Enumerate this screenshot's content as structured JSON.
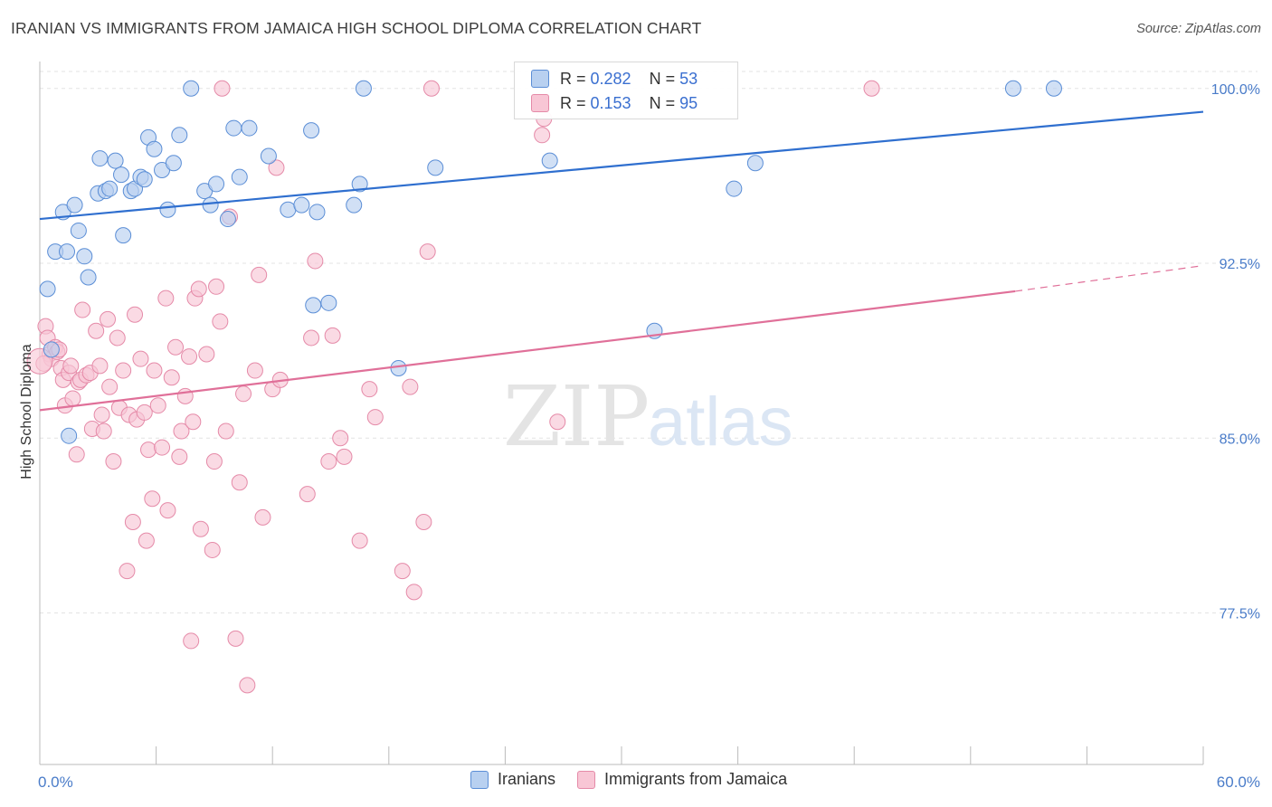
{
  "header": {
    "title": "IRANIAN VS IMMIGRANTS FROM JAMAICA HIGH SCHOOL DIPLOMA CORRELATION CHART",
    "source": "Source: ZipAtlas.com"
  },
  "watermark": {
    "zip": "ZIP",
    "atlas": "atlas"
  },
  "colors": {
    "blue_fill": "#b8d0f0",
    "blue_stroke": "#5b8ed6",
    "blue_line": "#2f6fcf",
    "pink_fill": "#f8c6d5",
    "pink_stroke": "#e58aa8",
    "pink_line": "#e07099",
    "tick_color": "#4a7cc9",
    "grid": "#e3e3e3"
  },
  "legend": {
    "rows": [
      {
        "r_label": "R = ",
        "r_value": "0.282",
        "n_label": "N = ",
        "n_value": "53"
      },
      {
        "r_label": "R = ",
        "r_value": "0.153",
        "n_label": "N = ",
        "n_value": "95"
      }
    ]
  },
  "chart_data": {
    "type": "scatter",
    "title": "IRANIAN VS IMMIGRANTS FROM JAMAICA HIGH SCHOOL DIPLOMA CORRELATION CHART",
    "xlabel": "",
    "ylabel": "High School Diploma",
    "xlim": [
      0,
      60
    ],
    "ylim": [
      71.0,
      101.0
    ],
    "x_tick_labels": [
      "0.0%",
      "60.0%"
    ],
    "x_tick_positions": [
      0,
      6,
      12,
      18,
      24,
      30,
      36,
      42,
      48,
      54,
      60
    ],
    "y_ticks": [
      77.5,
      85.0,
      92.5,
      100.0
    ],
    "y_tick_labels": [
      "77.5%",
      "85.0%",
      "92.5%",
      "100.0%"
    ],
    "grid": true,
    "legend_position": "top-center",
    "series": [
      {
        "name": "Iranians",
        "color": "blue",
        "r": 0.282,
        "n": 53,
        "trend": {
          "x": [
            0,
            60
          ],
          "y": [
            94.4,
            99.0
          ]
        },
        "points": [
          [
            0.4,
            91.4
          ],
          [
            0.8,
            93.0
          ],
          [
            1.2,
            94.7
          ],
          [
            1.8,
            95.0
          ],
          [
            2.0,
            93.9
          ],
          [
            2.3,
            92.8
          ],
          [
            2.5,
            91.9
          ],
          [
            1.4,
            93.0
          ],
          [
            3.0,
            95.5
          ],
          [
            3.1,
            97.0
          ],
          [
            3.4,
            95.6
          ],
          [
            3.6,
            95.7
          ],
          [
            3.9,
            96.9
          ],
          [
            4.2,
            96.3
          ],
          [
            4.3,
            93.7
          ],
          [
            4.7,
            95.6
          ],
          [
            4.9,
            95.7
          ],
          [
            5.2,
            96.2
          ],
          [
            5.4,
            96.1
          ],
          [
            5.6,
            97.9
          ],
          [
            5.9,
            97.4
          ],
          [
            6.3,
            96.5
          ],
          [
            6.6,
            94.8
          ],
          [
            6.9,
            96.8
          ],
          [
            7.2,
            98.0
          ],
          [
            7.8,
            100.0
          ],
          [
            8.5,
            95.6
          ],
          [
            8.8,
            95.0
          ],
          [
            9.1,
            95.9
          ],
          [
            9.7,
            94.4
          ],
          [
            10.0,
            98.3
          ],
          [
            10.3,
            96.2
          ],
          [
            10.8,
            98.3
          ],
          [
            11.8,
            97.1
          ],
          [
            12.8,
            94.8
          ],
          [
            13.5,
            95.0
          ],
          [
            14.0,
            98.2
          ],
          [
            14.3,
            94.7
          ],
          [
            14.1,
            90.7
          ],
          [
            14.9,
            90.8
          ],
          [
            16.2,
            95.0
          ],
          [
            16.5,
            95.9
          ],
          [
            16.7,
            100.0
          ],
          [
            18.5,
            88.0
          ],
          [
            20.4,
            96.6
          ],
          [
            26.3,
            96.9
          ],
          [
            31.7,
            89.6
          ],
          [
            35.8,
            95.7
          ],
          [
            36.9,
            96.8
          ],
          [
            50.2,
            100.0
          ],
          [
            52.3,
            100.0
          ],
          [
            1.5,
            85.1
          ],
          [
            0.6,
            88.8
          ]
        ]
      },
      {
        "name": "Immigrants from Jamaica",
        "color": "pink",
        "r": 0.153,
        "n": 95,
        "trend": {
          "x": [
            0,
            50.3
          ],
          "y": [
            86.2,
            91.3
          ]
        },
        "trend_dashed": {
          "x": [
            50.3,
            60
          ],
          "y": [
            91.3,
            92.4
          ]
        },
        "points": [
          [
            0.3,
            89.8
          ],
          [
            0.4,
            89.3
          ],
          [
            0.5,
            88.6
          ],
          [
            0.6,
            88.4
          ],
          [
            0.8,
            88.9
          ],
          [
            0.9,
            88.7
          ],
          [
            1.0,
            88.8
          ],
          [
            1.1,
            88.0
          ],
          [
            1.2,
            87.5
          ],
          [
            1.3,
            86.4
          ],
          [
            1.5,
            87.8
          ],
          [
            1.7,
            86.7
          ],
          [
            1.9,
            84.3
          ],
          [
            2.0,
            87.4
          ],
          [
            2.1,
            87.5
          ],
          [
            2.2,
            90.5
          ],
          [
            2.4,
            87.7
          ],
          [
            2.6,
            87.8
          ],
          [
            2.7,
            85.4
          ],
          [
            2.9,
            89.6
          ],
          [
            3.1,
            88.1
          ],
          [
            3.2,
            86.0
          ],
          [
            3.3,
            85.3
          ],
          [
            3.5,
            90.1
          ],
          [
            3.6,
            87.2
          ],
          [
            3.8,
            84.0
          ],
          [
            4.0,
            89.3
          ],
          [
            4.1,
            86.3
          ],
          [
            4.3,
            87.9
          ],
          [
            4.5,
            79.3
          ],
          [
            4.6,
            86.0
          ],
          [
            4.8,
            81.4
          ],
          [
            4.9,
            90.3
          ],
          [
            5.0,
            85.8
          ],
          [
            5.2,
            88.4
          ],
          [
            5.4,
            86.1
          ],
          [
            5.5,
            80.6
          ],
          [
            5.6,
            84.5
          ],
          [
            5.8,
            82.4
          ],
          [
            5.9,
            87.9
          ],
          [
            6.1,
            86.4
          ],
          [
            6.3,
            84.6
          ],
          [
            6.5,
            91.0
          ],
          [
            6.6,
            81.9
          ],
          [
            6.8,
            87.6
          ],
          [
            7.0,
            88.9
          ],
          [
            7.2,
            84.2
          ],
          [
            7.3,
            85.3
          ],
          [
            7.5,
            86.8
          ],
          [
            7.7,
            88.5
          ],
          [
            7.8,
            76.3
          ],
          [
            7.9,
            85.7
          ],
          [
            8.0,
            91.0
          ],
          [
            8.2,
            91.4
          ],
          [
            8.3,
            81.1
          ],
          [
            8.6,
            88.6
          ],
          [
            8.9,
            80.2
          ],
          [
            9.0,
            84.0
          ],
          [
            9.1,
            91.5
          ],
          [
            9.3,
            90.0
          ],
          [
            9.6,
            85.3
          ],
          [
            9.8,
            94.5
          ],
          [
            10.1,
            76.4
          ],
          [
            10.3,
            83.1
          ],
          [
            10.5,
            86.9
          ],
          [
            10.7,
            74.4
          ],
          [
            11.1,
            87.9
          ],
          [
            11.3,
            92.0
          ],
          [
            11.5,
            81.6
          ],
          [
            12.0,
            87.1
          ],
          [
            12.2,
            96.6
          ],
          [
            12.4,
            87.5
          ],
          [
            13.8,
            82.6
          ],
          [
            14.0,
            89.3
          ],
          [
            14.2,
            92.6
          ],
          [
            14.9,
            84.0
          ],
          [
            15.1,
            89.4
          ],
          [
            15.5,
            85.0
          ],
          [
            15.7,
            84.2
          ],
          [
            16.5,
            80.6
          ],
          [
            17.0,
            87.1
          ],
          [
            17.3,
            85.9
          ],
          [
            18.7,
            79.3
          ],
          [
            19.1,
            87.2
          ],
          [
            19.3,
            78.4
          ],
          [
            19.8,
            81.4
          ],
          [
            20.0,
            93.0
          ],
          [
            20.2,
            100.0
          ],
          [
            25.9,
            98.0
          ],
          [
            26.7,
            85.7
          ],
          [
            42.9,
            100.0
          ],
          [
            9.4,
            100.0
          ],
          [
            26.0,
            98.7
          ],
          [
            0.2,
            88.2
          ],
          [
            1.6,
            88.1
          ]
        ]
      }
    ]
  },
  "bottom_legend": {
    "items": [
      {
        "label": "Iranians"
      },
      {
        "label": "Immigrants from Jamaica"
      }
    ]
  }
}
